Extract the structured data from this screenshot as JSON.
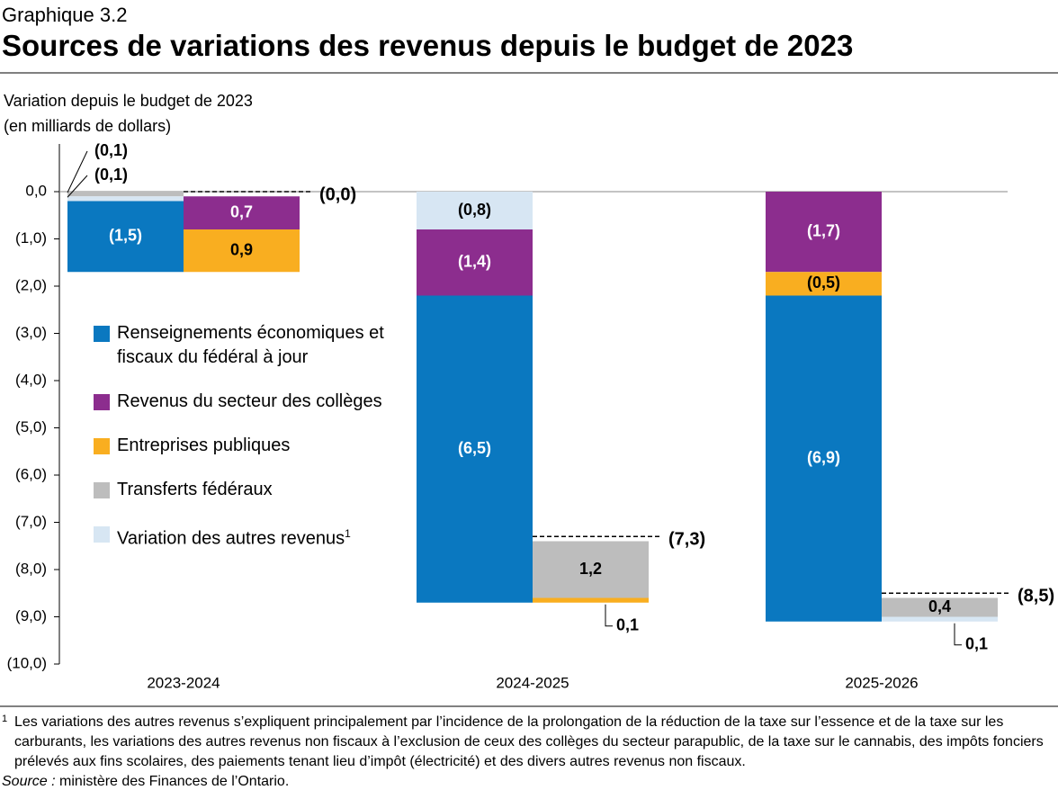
{
  "chart_data": {
    "type": "waterfall-stack",
    "kicker": "Graphique 3.2",
    "title": "Sources de variations des revenus depuis le budget de 2023",
    "y_label": [
      "Variation depuis le budget de 2023",
      "(en milliards de dollars)"
    ],
    "categories": [
      "2023-2024",
      "2024-2025",
      "2025-2026"
    ],
    "series": [
      {
        "name": "Renseignements économiques et fiscaux du fédéral à jour",
        "color": "#0a78c0",
        "label_color": "#ffffff",
        "values": [
          -1.5,
          -6.5,
          -6.9
        ],
        "value_labels": [
          "(1,5)",
          "(6,5)",
          "(6,9)"
        ]
      },
      {
        "name": "Revenus du secteur des collèges",
        "color": "#8c2d8e",
        "label_color": "#ffffff",
        "values": [
          0.7,
          -1.4,
          -1.7
        ],
        "value_labels": [
          "0,7",
          "(1,4)",
          "(1,7)"
        ]
      },
      {
        "name": "Entreprises publiques",
        "color": "#f9ae20",
        "label_color": "#000000",
        "values": [
          0.9,
          0.1,
          -0.5
        ],
        "value_labels": [
          "0,9",
          "0,1",
          "(0,5)"
        ]
      },
      {
        "name": "Transferts fédéraux",
        "color": "#bdbdbd",
        "label_color": "#000000",
        "values": [
          -0.1,
          1.2,
          0.4
        ],
        "value_labels": [
          "(0,1)",
          "1,2",
          "0,4"
        ]
      },
      {
        "name": "Variation des autres revenus",
        "name_note": "1",
        "color": "#d7e6f3",
        "label_color": "#000000",
        "values": [
          -0.1,
          -0.8,
          0.1
        ],
        "value_labels": [
          "(0,1)",
          "(0,8)",
          "0,1"
        ]
      }
    ],
    "totals": {
      "values": [
        0.0,
        -7.3,
        -8.5
      ],
      "value_labels": [
        "(0,0)",
        "(7,3)",
        "(8,5)"
      ]
    },
    "ylim": [
      -10,
      1
    ],
    "yticks": [
      {
        "value": -10,
        "label": "(10,0)"
      },
      {
        "value": -9,
        "label": "(9,0)"
      },
      {
        "value": -8,
        "label": "(8,0)"
      },
      {
        "value": -7,
        "label": "(7,0)"
      },
      {
        "value": -6,
        "label": "(6,0)"
      },
      {
        "value": -5,
        "label": "(5,0)"
      },
      {
        "value": -4,
        "label": "(4,0)"
      },
      {
        "value": -3,
        "label": "(3,0)"
      },
      {
        "value": -2,
        "label": "(2,0)"
      },
      {
        "value": -1,
        "label": "(1,0)"
      },
      {
        "value": 0,
        "label": "0,0"
      }
    ],
    "footnote": {
      "marker": "1",
      "text": "Les variations des autres revenus s’expliquent principalement par l’incidence de la prolongation de la réduction de la taxe sur l’essence et de la taxe sur les carburants, les variations des autres revenus non fiscaux à l’exclusion de ceux des collèges du secteur parapublic, de la taxe sur le cannabis, des impôts fonciers prélevés aux fins scolaires, des paiements tenant lieu d’impôt (électricité) et des divers autres revenus non fiscaux."
    },
    "source": {
      "label": "Source :",
      "text": "ministère des Finances de l’Ontario."
    }
  }
}
